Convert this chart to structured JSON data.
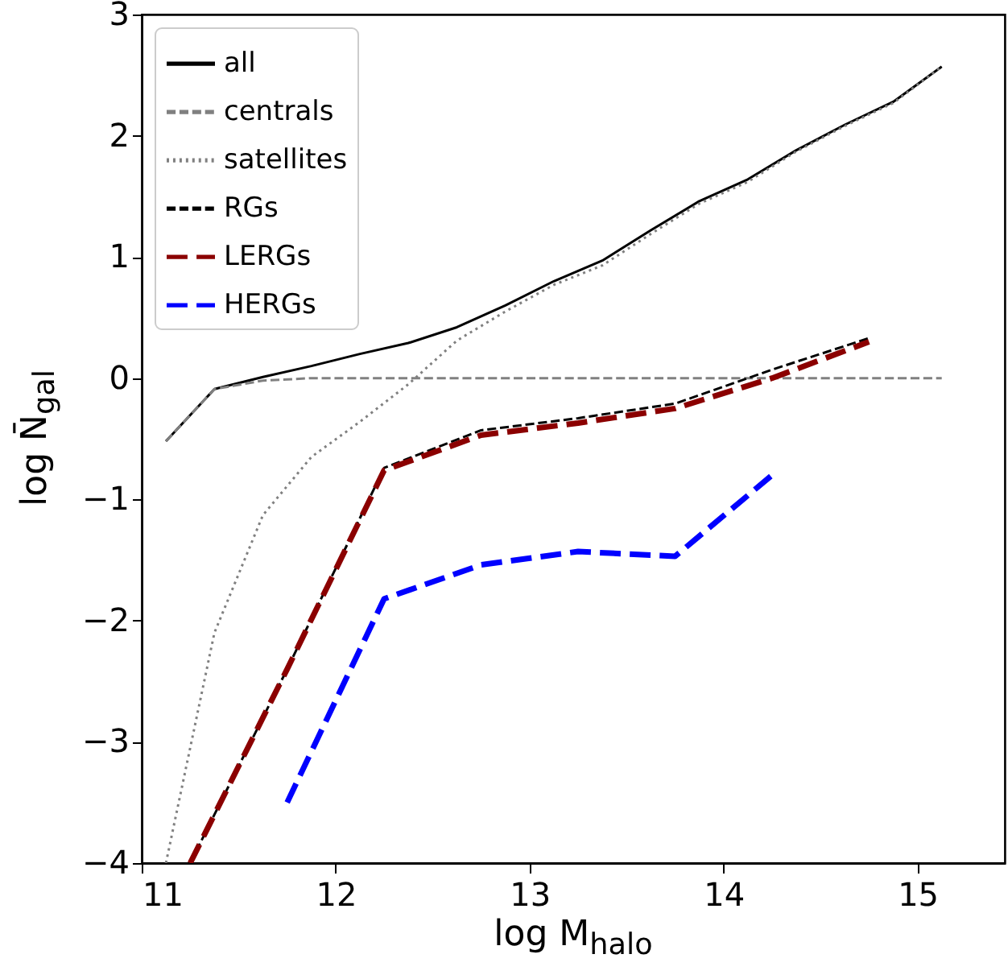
{
  "chart_data": {
    "type": "line",
    "xlabel": "log M$_{halo}$",
    "ylabel": "log N̄$_{gal}$",
    "xlim": [
      11,
      15.45
    ],
    "ylim": [
      -4,
      3
    ],
    "xticks": [
      11,
      12,
      13,
      14,
      15
    ],
    "yticks": [
      -4,
      -3,
      -2,
      -1,
      0,
      1,
      2,
      3
    ],
    "legend": "top left",
    "series": [
      {
        "name": "all",
        "color": "#000000",
        "line_style": "solid",
        "x": [
          11.125,
          11.375,
          11.625,
          11.875,
          12.125,
          12.375,
          12.625,
          12.875,
          13.125,
          13.375,
          13.625,
          13.875,
          14.125,
          14.375,
          14.625,
          14.875,
          15.125
        ],
        "values": [
          -0.52,
          -0.09,
          0.01,
          0.1,
          0.2,
          0.29,
          0.42,
          0.6,
          0.8,
          0.97,
          1.22,
          1.46,
          1.64,
          1.88,
          2.09,
          2.28,
          2.57
        ]
      },
      {
        "name": "centrals",
        "color": "#808080",
        "line_style": "dashed",
        "x": [
          11.125,
          11.375,
          11.625,
          11.875,
          12.125,
          12.375,
          12.625,
          12.875,
          13.125,
          13.375,
          13.625,
          13.875,
          14.125,
          14.375,
          14.625,
          14.875,
          15.125
        ],
        "values": [
          -0.52,
          -0.09,
          -0.02,
          0,
          0,
          0,
          0,
          0,
          0,
          0,
          0,
          0,
          0,
          0,
          0,
          0,
          0
        ]
      },
      {
        "name": "satellites",
        "color": "#808080",
        "line_style": "dotted",
        "x": [
          11.125,
          11.375,
          11.625,
          11.875,
          12.125,
          12.375,
          12.625,
          12.875,
          13.125,
          13.375,
          13.625,
          13.875,
          14.125,
          14.375,
          14.625,
          14.875,
          15.125
        ],
        "values": [
          -4,
          -2.1,
          -1.13,
          -0.65,
          -0.36,
          -0.05,
          0.31,
          0.55,
          0.77,
          0.93,
          1.19,
          1.44,
          1.62,
          1.87,
          2.08,
          2.27,
          2.57
        ]
      },
      {
        "name": "RGs",
        "color": "#000000",
        "line_style": "dashed",
        "x": [
          11.25,
          11.75,
          12.25,
          12.75,
          13.25,
          13.75,
          14.25,
          14.75
        ],
        "values": [
          -4,
          -2.4,
          -0.74,
          -0.43,
          -0.33,
          -0.21,
          0.07,
          0.33
        ]
      },
      {
        "name": "LERGs",
        "color": "#8b0000",
        "line_style": "dashed",
        "x": [
          11.25,
          11.75,
          12.25,
          12.75,
          13.25,
          13.75,
          14.25,
          14.75
        ],
        "values": [
          -4,
          -2.4,
          -0.76,
          -0.47,
          -0.37,
          -0.25,
          0,
          0.3
        ]
      },
      {
        "name": "HERGs",
        "color": "#0000ff",
        "line_style": "dashed",
        "x": [
          11.75,
          12.25,
          12.75,
          13.25,
          13.75,
          14.25
        ],
        "values": [
          -3.5,
          -1.82,
          -1.54,
          -1.43,
          -1.47,
          -0.8
        ]
      }
    ]
  }
}
